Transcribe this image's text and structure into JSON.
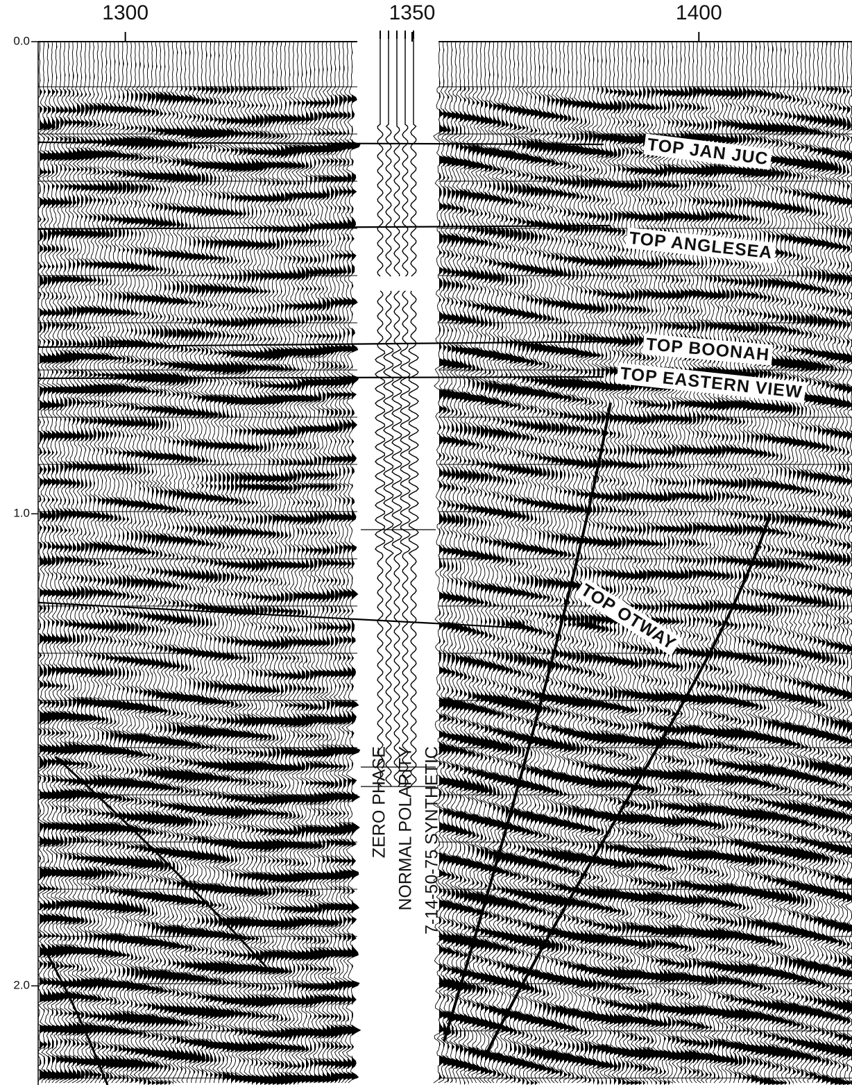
{
  "chart_data": {
    "type": "seismic",
    "xlim": [
      1284.8,
      1426.7
    ],
    "xticks": [
      1300,
      1350,
      1400
    ],
    "ylim": [
      0,
      2.21
    ],
    "yticks": [
      {
        "value": 0,
        "label": "0.0"
      },
      {
        "value": 1,
        "label": "1.0"
      },
      {
        "value": 2,
        "label": "2.0"
      }
    ],
    "annotations": [
      "TOP JAN JUC",
      "TOP ANGLESEA",
      "TOP BOONAH",
      "TOP EASTERN VIEW",
      "TOP OTWAY"
    ],
    "synthetic_labels": [
      "ZERO PHASE",
      "NORMAL POLARITY",
      "7-14-50-75 SYNTHETIC"
    ]
  }
}
